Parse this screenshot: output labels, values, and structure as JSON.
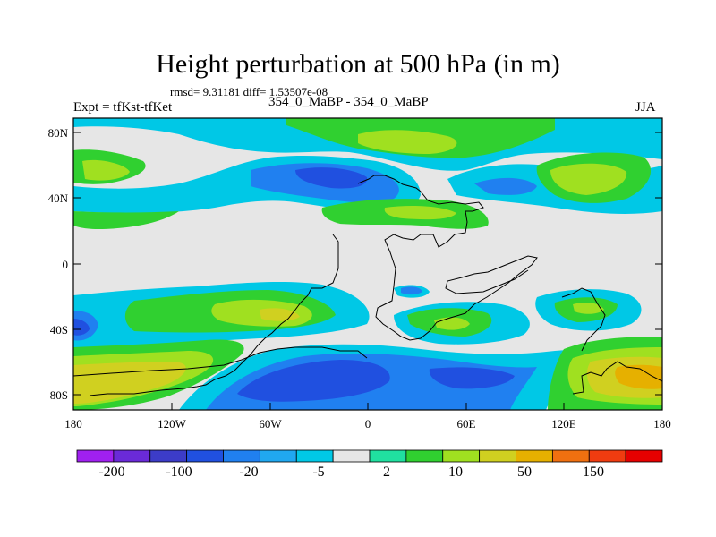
{
  "title": "Height perturbation at 500 hPa (in m)",
  "stats": "rmsd= 9.31181 diff= 1.53507e-08",
  "left_label": "Expt = tfKst-tfKet",
  "center_label": "354_0_MaBP - 354_0_MaBP",
  "right_label": "JJA",
  "lat_ticks": [
    "80N",
    "40N",
    "0",
    "40S",
    "80S"
  ],
  "lon_ticks": [
    "180",
    "120W",
    "60W",
    "0",
    "60E",
    "120E",
    "180"
  ],
  "colorbar": {
    "colors": [
      "#a020f0",
      "#6a2ad8",
      "#3c3cc8",
      "#2050e0",
      "#2080f0",
      "#20a8f0",
      "#00c8e6",
      "#e6e6e6",
      "#20e0a0",
      "#30d030",
      "#a0e020",
      "#d0d020",
      "#e6b000",
      "#f07010",
      "#f03c10",
      "#e60000"
    ],
    "labels": [
      "-200",
      "-100",
      "-20",
      "-5",
      "2",
      "10",
      "50",
      "150"
    ]
  }
}
